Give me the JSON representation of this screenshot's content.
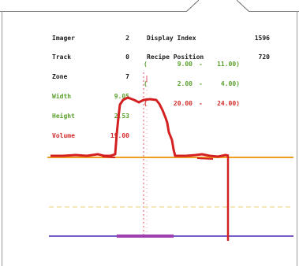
{
  "info": {
    "rows": [
      {
        "label": "Imager",
        "value": "2",
        "label2": "Display Index",
        "value2": "1596"
      },
      {
        "label": "Track",
        "value": "0",
        "label2": "Recipe Position",
        "value2": "720"
      },
      {
        "label": "Zone",
        "value": "7",
        "label2": "",
        "value2": ""
      }
    ],
    "measurements": [
      {
        "label": "Width",
        "value": "9.05",
        "open": "(",
        "min": "9.00",
        "sep": "-",
        "max": "11.00)",
        "color": "#5aa02c"
      },
      {
        "label": "Height",
        "value": "2.53",
        "open": "(",
        "min": "2.00",
        "sep": "-",
        "max": "4.00)",
        "color": "#5aa02c"
      },
      {
        "label": "Volume",
        "value": "19.00",
        "open": "(",
        "min": "20.00",
        "sep": "-",
        "max": "24.00)",
        "color": "#d42a2a"
      }
    ]
  },
  "colors": {
    "profile": "#d42020",
    "baseline": "#f0a020",
    "bottom_line": "#7a5cc8",
    "bottom_highlight": "#a040b0",
    "center_marker": "#e05060",
    "threshold_dashed": "#f0e0a0"
  }
}
